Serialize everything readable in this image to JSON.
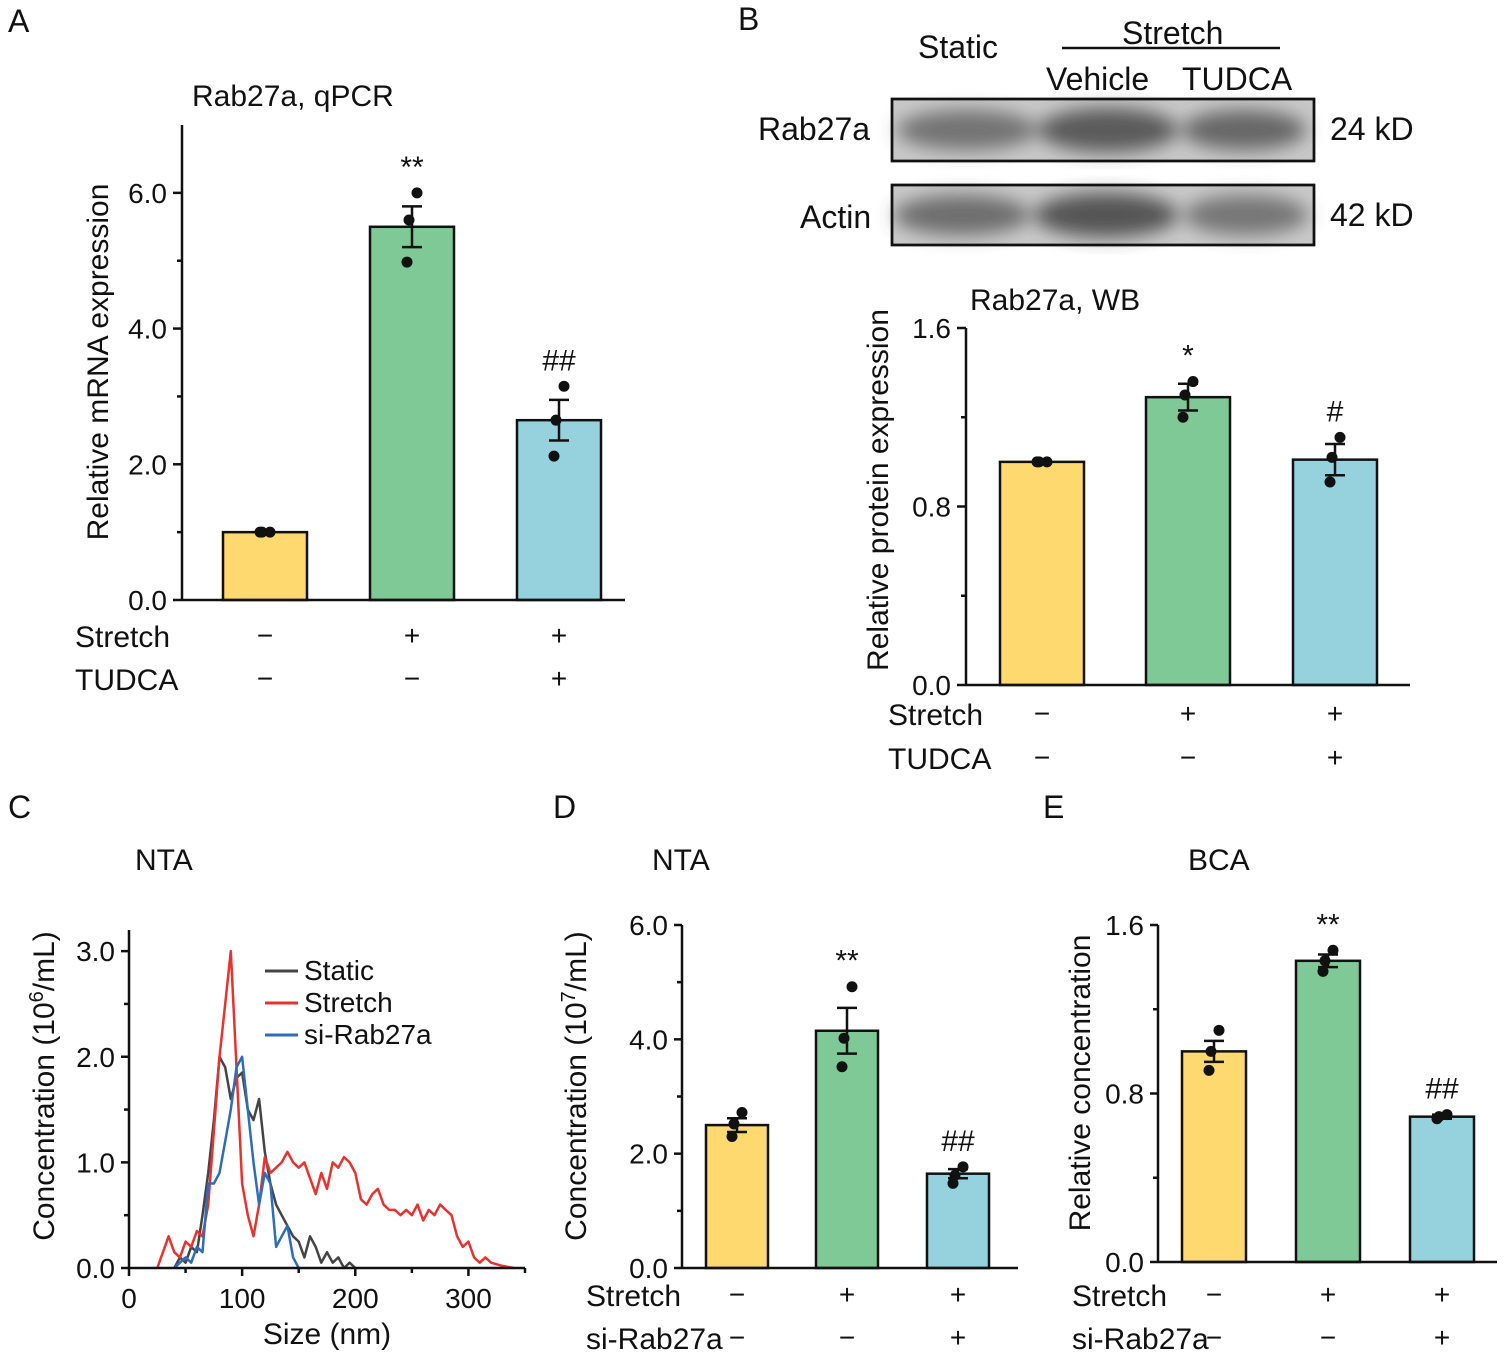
{
  "panels": {
    "A": "A",
    "B": "B",
    "C": "C",
    "D": "D",
    "E": "E"
  },
  "blot": {
    "header_static": "Static",
    "header_stretch": "Stretch",
    "header_vehicle": "Vehicle",
    "header_tudca": "TUDCA",
    "row1_label": "Rab27a",
    "row1_kd": "24 kD",
    "row2_label": "Actin",
    "row2_kd": "42 kD"
  },
  "colors": {
    "yellow": "#FDD970",
    "green": "#7FC997",
    "blue": "#96D2DE",
    "static_line": "#444444",
    "stretch_line": "#E8322E",
    "sirab_line": "#2E6DB9"
  },
  "chart_data": [
    {
      "id": "A",
      "type": "bar",
      "title": "Rab27a, qPCR",
      "ylabel": "Relative mRNA expression",
      "ylim": [
        0,
        7.0
      ],
      "yticks": [
        0.0,
        2.0,
        4.0,
        6.0
      ],
      "ytick_labels": [
        "0.0",
        "2.0",
        "4.0",
        "6.0"
      ],
      "values": [
        1.0,
        5.5,
        2.65
      ],
      "errors": [
        0.0,
        0.3,
        0.3
      ],
      "points": [
        [
          1.0,
          1.0,
          1.0
        ],
        [
          6.0,
          5.6,
          4.98
        ],
        [
          3.15,
          2.65,
          2.12
        ]
      ],
      "sig": [
        "",
        "**",
        "##"
      ],
      "conditions": [
        {
          "label": "Stretch",
          "signs": [
            "−",
            "+",
            "+"
          ]
        },
        {
          "label": "TUDCA",
          "signs": [
            "−",
            "−",
            "+"
          ]
        }
      ]
    },
    {
      "id": "B",
      "type": "bar",
      "title": "Rab27a, WB",
      "ylabel": "Relative protein expression",
      "ylim": [
        0,
        1.6
      ],
      "yticks": [
        0.0,
        0.8,
        1.6
      ],
      "ytick_labels": [
        "0.0",
        "0.8",
        "1.6"
      ],
      "values": [
        1.0,
        1.29,
        1.01
      ],
      "errors": [
        0.0,
        0.06,
        0.07
      ],
      "points": [
        [
          1.0,
          1.0,
          1.0
        ],
        [
          1.36,
          1.3,
          1.2
        ],
        [
          1.11,
          1.02,
          0.91
        ]
      ],
      "sig": [
        "",
        "*",
        "#"
      ],
      "conditions": [
        {
          "label": "Stretch",
          "signs": [
            "−",
            "+",
            "+"
          ]
        },
        {
          "label": "TUDCA",
          "signs": [
            "−",
            "−",
            "+"
          ]
        }
      ]
    },
    {
      "id": "C",
      "type": "line",
      "title": "NTA",
      "xlabel": "Size (nm)",
      "ylabel_pre": "Concentration (10",
      "ylabel_sup": "6",
      "ylabel_post": "/mL)",
      "xlim": [
        0,
        350
      ],
      "ylim": [
        0,
        3.2
      ],
      "xticks": [
        0,
        100,
        200,
        300
      ],
      "xtick_labels": [
        "0",
        "100",
        "200",
        "300"
      ],
      "yticks": [
        0.0,
        1.0,
        2.0,
        3.0
      ],
      "ytick_labels": [
        "0.0",
        "1.0",
        "2.0",
        "3.0"
      ],
      "series": [
        {
          "name": "Static",
          "x": [
            40,
            45,
            50,
            55,
            60,
            65,
            70,
            75,
            80,
            85,
            90,
            95,
            100,
            105,
            110,
            115,
            120,
            125,
            130,
            135,
            140,
            145,
            150,
            155,
            160,
            165,
            170,
            175,
            180,
            185,
            190,
            195,
            200
          ],
          "y": [
            0,
            0.1,
            0.05,
            0.2,
            0.15,
            0.5,
            0.9,
            1.4,
            2.0,
            1.9,
            1.6,
            1.8,
            1.85,
            1.5,
            1.4,
            1.6,
            1.1,
            0.8,
            0.6,
            0.5,
            0.4,
            0.3,
            0.25,
            0.1,
            0.3,
            0.2,
            0.05,
            0.15,
            0.05,
            0.1,
            0.0,
            0.05,
            0
          ]
        },
        {
          "name": "Stretch",
          "x": [
            25,
            35,
            40,
            45,
            50,
            55,
            60,
            65,
            70,
            75,
            80,
            85,
            90,
            95,
            100,
            105,
            110,
            115,
            120,
            125,
            130,
            135,
            140,
            145,
            150,
            155,
            160,
            165,
            170,
            175,
            180,
            185,
            190,
            195,
            200,
            205,
            210,
            215,
            220,
            225,
            230,
            235,
            240,
            245,
            250,
            255,
            260,
            265,
            270,
            275,
            280,
            285,
            290,
            295,
            300,
            305,
            310,
            315,
            320,
            330,
            340
          ],
          "y": [
            0,
            0.3,
            0.15,
            0.1,
            0.25,
            0.2,
            0.35,
            0.3,
            0.6,
            1.3,
            2.0,
            2.5,
            3.0,
            1.9,
            0.8,
            0.5,
            0.3,
            0.6,
            1.05,
            0.9,
            0.95,
            1.0,
            1.1,
            1.0,
            0.95,
            1.0,
            0.85,
            0.7,
            0.9,
            0.75,
            1.0,
            0.95,
            1.05,
            1.0,
            0.9,
            0.65,
            0.6,
            0.7,
            0.75,
            0.6,
            0.55,
            0.55,
            0.5,
            0.55,
            0.5,
            0.6,
            0.45,
            0.55,
            0.5,
            0.6,
            0.55,
            0.5,
            0.3,
            0.2,
            0.25,
            0.1,
            0.05,
            0.1,
            0.05,
            0.02,
            0
          ]
        },
        {
          "name": "si-Rab27a",
          "x": [
            40,
            45,
            50,
            55,
            60,
            65,
            70,
            75,
            80,
            85,
            90,
            95,
            100,
            105,
            110,
            115,
            120,
            125,
            130,
            135,
            140,
            145,
            150
          ],
          "y": [
            0,
            0.05,
            0.1,
            0.05,
            0.2,
            0.15,
            0.8,
            0.8,
            0.9,
            1.2,
            1.5,
            1.9,
            2.0,
            1.5,
            1.0,
            0.6,
            0.9,
            0.8,
            0.2,
            0.3,
            0.4,
            0.1,
            0
          ]
        }
      ]
    },
    {
      "id": "D",
      "type": "bar",
      "title": "NTA",
      "ylabel_pre": "Concentration (10",
      "ylabel_sup": "7",
      "ylabel_post": "/mL)",
      "ylim": [
        0,
        6.0
      ],
      "yticks": [
        0.0,
        2.0,
        4.0,
        6.0
      ],
      "ytick_labels": [
        "0.0",
        "2.0",
        "4.0",
        "6.0"
      ],
      "values": [
        2.5,
        4.15,
        1.65
      ],
      "errors": [
        0.12,
        0.4,
        0.08
      ],
      "points": [
        [
          2.72,
          2.52,
          2.3
        ],
        [
          4.92,
          4.02,
          3.52
        ],
        [
          1.77,
          1.62,
          1.48
        ]
      ],
      "sig": [
        "",
        "**",
        "##"
      ],
      "conditions": [
        {
          "label": "Stretch",
          "signs": [
            "−",
            "+",
            "+"
          ]
        },
        {
          "label": "si-Rab27a",
          "signs": [
            "−",
            "−",
            "+"
          ]
        }
      ]
    },
    {
      "id": "E",
      "type": "bar",
      "title": "BCA",
      "ylabel": "Relative concentration",
      "ylim": [
        0,
        1.6
      ],
      "yticks": [
        0.0,
        0.8,
        1.6
      ],
      "ytick_labels": [
        "0.0",
        "0.8",
        "1.6"
      ],
      "values": [
        1.0,
        1.43,
        0.69
      ],
      "errors": [
        0.05,
        0.03,
        0.01
      ],
      "points": [
        [
          1.1,
          1.0,
          0.91
        ],
        [
          1.48,
          1.43,
          1.38
        ],
        [
          0.7,
          0.69,
          0.68
        ]
      ],
      "sig": [
        "",
        "**",
        "##"
      ],
      "conditions": [
        {
          "label": "Stretch",
          "signs": [
            "−",
            "+",
            "+"
          ]
        },
        {
          "label": "si-Rab27a",
          "signs": [
            "−",
            "−",
            "+"
          ]
        }
      ]
    }
  ]
}
